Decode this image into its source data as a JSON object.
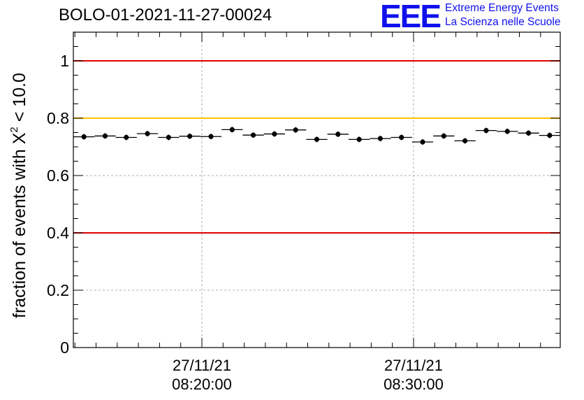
{
  "title": "BOLO-01-2021-11-27-00024",
  "logo": {
    "mark": "EEE",
    "line1": "Extreme Energy Events",
    "line2": "La Scienza nelle Scuole",
    "color": "#1010ee"
  },
  "chart_data": {
    "type": "scatter",
    "title": "BOLO-01-2021-11-27-00024",
    "xlabel": "",
    "ylabel_parts": {
      "prefix": "fraction of events with X",
      "sup": "2",
      "suffix": " < 10.0"
    },
    "ylim": [
      0,
      1.1
    ],
    "yticks": [
      "0",
      "0.2",
      "0.4",
      "0.6",
      "0.8",
      "1"
    ],
    "yticks_values": [
      0,
      0.2,
      0.4,
      0.6,
      0.8,
      1.0
    ],
    "xtick_labels": [
      {
        "date": "27/11/21",
        "time": "08:20:00"
      },
      {
        "date": "27/11/21",
        "time": "08:30:00"
      }
    ],
    "grid": true,
    "reference_lines": [
      {
        "y": 1.0,
        "color": "#e00000"
      },
      {
        "y": 0.8,
        "color": "#ffc000"
      },
      {
        "y": 0.4,
        "color": "#e00000"
      }
    ],
    "values": [
      0.735,
      0.738,
      0.733,
      0.746,
      0.733,
      0.737,
      0.736,
      0.76,
      0.741,
      0.745,
      0.759,
      0.726,
      0.744,
      0.726,
      0.729,
      0.733,
      0.717,
      0.738,
      0.721,
      0.757,
      0.754,
      0.748,
      0.74
    ]
  }
}
